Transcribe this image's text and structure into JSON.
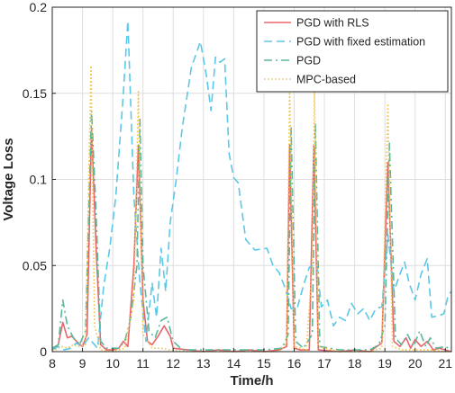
{
  "chart_data": {
    "type": "line",
    "xlabel": "Time/h",
    "ylabel": "Voltage Loss",
    "xlim": [
      8,
      21.2
    ],
    "ylim": [
      0,
      0.2
    ],
    "xticks": [
      "8",
      "9",
      "10",
      "11",
      "12",
      "13",
      "14",
      "15",
      "16",
      "17",
      "18",
      "19",
      "20",
      "21"
    ],
    "yticks": [
      "0",
      "0.05",
      "0.1",
      "0.15",
      "0.2"
    ],
    "grid": true,
    "legend_position": "top-right",
    "series": [
      {
        "name": "PGD with RLS",
        "color": "#e8666b",
        "style": "solid",
        "points": [
          [
            8.0,
            0.001
          ],
          [
            8.2,
            0.004
          ],
          [
            8.35,
            0.017
          ],
          [
            8.5,
            0.008
          ],
          [
            8.65,
            0.009
          ],
          [
            8.8,
            0.006
          ],
          [
            9.0,
            0.003
          ],
          [
            9.15,
            0.01
          ],
          [
            9.3,
            0.13
          ],
          [
            9.45,
            0.06
          ],
          [
            9.6,
            0.004
          ],
          [
            9.8,
            0.001
          ],
          [
            10.0,
            0.001
          ],
          [
            10.2,
            0.002
          ],
          [
            10.35,
            0.006
          ],
          [
            10.5,
            0.003
          ],
          [
            10.7,
            0.05
          ],
          [
            10.85,
            0.12
          ],
          [
            11.0,
            0.03
          ],
          [
            11.15,
            0.006
          ],
          [
            11.3,
            0.004
          ],
          [
            11.5,
            0.009
          ],
          [
            11.7,
            0.015
          ],
          [
            11.9,
            0.009
          ],
          [
            12.0,
            0.002
          ],
          [
            12.5,
            0.001
          ],
          [
            13.0,
            0.0
          ],
          [
            13.5,
            0.001
          ],
          [
            14.0,
            0.0
          ],
          [
            14.5,
            0.001
          ],
          [
            15.0,
            0.0
          ],
          [
            15.5,
            0.001
          ],
          [
            15.75,
            0.003
          ],
          [
            15.85,
            0.12
          ],
          [
            16.0,
            0.002
          ],
          [
            16.2,
            0.001
          ],
          [
            16.5,
            0.001
          ],
          [
            16.65,
            0.12
          ],
          [
            16.8,
            0.001
          ],
          [
            17.5,
            0.0
          ],
          [
            18.0,
            0.001
          ],
          [
            18.5,
            0.0
          ],
          [
            18.9,
            0.005
          ],
          [
            19.1,
            0.11
          ],
          [
            19.3,
            0.006
          ],
          [
            19.5,
            0.003
          ],
          [
            19.7,
            0.008
          ],
          [
            19.85,
            0.002
          ],
          [
            20.0,
            0.007
          ],
          [
            20.2,
            0.003
          ],
          [
            20.4,
            0.006
          ],
          [
            20.6,
            0.001
          ],
          [
            20.8,
            0.002
          ],
          [
            21.0,
            0.001
          ],
          [
            21.2,
            0.0
          ]
        ]
      },
      {
        "name": "PGD with fixed estimation",
        "color": "#5bc8e8",
        "style": "dashed",
        "points": [
          [
            8.0,
            0.001
          ],
          [
            8.2,
            0.003
          ],
          [
            8.4,
            0.001
          ],
          [
            8.6,
            0.002
          ],
          [
            8.8,
            0.005
          ],
          [
            9.0,
            0.003
          ],
          [
            9.2,
            0.008
          ],
          [
            9.35,
            0.005
          ],
          [
            9.5,
            0.002
          ],
          [
            9.7,
            0.038
          ],
          [
            9.9,
            0.06
          ],
          [
            10.1,
            0.09
          ],
          [
            10.35,
            0.15
          ],
          [
            10.5,
            0.192
          ],
          [
            10.7,
            0.09
          ],
          [
            10.9,
            0.04
          ],
          [
            11.1,
            0.006
          ],
          [
            11.3,
            0.04
          ],
          [
            11.45,
            0.02
          ],
          [
            11.6,
            0.06
          ],
          [
            11.75,
            0.035
          ],
          [
            11.9,
            0.075
          ],
          [
            12.1,
            0.1
          ],
          [
            12.3,
            0.13
          ],
          [
            12.6,
            0.165
          ],
          [
            12.9,
            0.18
          ],
          [
            13.1,
            0.16
          ],
          [
            13.25,
            0.14
          ],
          [
            13.4,
            0.171
          ],
          [
            13.55,
            0.168
          ],
          [
            13.7,
            0.17
          ],
          [
            13.85,
            0.115
          ],
          [
            14.0,
            0.101
          ],
          [
            14.15,
            0.098
          ],
          [
            14.4,
            0.065
          ],
          [
            14.7,
            0.059
          ],
          [
            15.1,
            0.06
          ],
          [
            15.3,
            0.05
          ],
          [
            15.5,
            0.046
          ],
          [
            15.7,
            0.037
          ],
          [
            15.9,
            0.025
          ],
          [
            16.1,
            0.025
          ],
          [
            16.3,
            0.038
          ],
          [
            16.5,
            0.049
          ],
          [
            16.75,
            0.051
          ],
          [
            16.9,
            0.026
          ],
          [
            17.1,
            0.03
          ],
          [
            17.3,
            0.015
          ],
          [
            17.5,
            0.02
          ],
          [
            17.7,
            0.018
          ],
          [
            17.9,
            0.028
          ],
          [
            18.1,
            0.022
          ],
          [
            18.3,
            0.025
          ],
          [
            18.5,
            0.018
          ],
          [
            18.7,
            0.025
          ],
          [
            18.9,
            0.026
          ],
          [
            19.1,
            0.068
          ],
          [
            19.3,
            0.035
          ],
          [
            19.5,
            0.045
          ],
          [
            19.65,
            0.052
          ],
          [
            19.8,
            0.04
          ],
          [
            20.0,
            0.03
          ],
          [
            20.2,
            0.045
          ],
          [
            20.4,
            0.054
          ],
          [
            20.55,
            0.02
          ],
          [
            20.8,
            0.021
          ],
          [
            20.95,
            0.022
          ],
          [
            21.1,
            0.033
          ],
          [
            21.2,
            0.035
          ]
        ]
      },
      {
        "name": "PGD",
        "color": "#5ab89a",
        "style": "dashdot",
        "points": [
          [
            8.0,
            0.002
          ],
          [
            8.2,
            0.004
          ],
          [
            8.35,
            0.03
          ],
          [
            8.5,
            0.015
          ],
          [
            8.7,
            0.008
          ],
          [
            8.9,
            0.004
          ],
          [
            9.1,
            0.012
          ],
          [
            9.3,
            0.14
          ],
          [
            9.45,
            0.08
          ],
          [
            9.6,
            0.006
          ],
          [
            9.8,
            0.002
          ],
          [
            10.0,
            0.002
          ],
          [
            10.2,
            0.002
          ],
          [
            10.4,
            0.006
          ],
          [
            10.6,
            0.02
          ],
          [
            10.8,
            0.05
          ],
          [
            10.9,
            0.135
          ],
          [
            11.0,
            0.05
          ],
          [
            11.2,
            0.012
          ],
          [
            11.4,
            0.008
          ],
          [
            11.6,
            0.018
          ],
          [
            11.8,
            0.02
          ],
          [
            12.0,
            0.006
          ],
          [
            12.3,
            0.001
          ],
          [
            13.0,
            0.001
          ],
          [
            14.0,
            0.001
          ],
          [
            15.0,
            0.001
          ],
          [
            15.6,
            0.002
          ],
          [
            15.8,
            0.01
          ],
          [
            15.9,
            0.13
          ],
          [
            16.05,
            0.006
          ],
          [
            16.3,
            0.002
          ],
          [
            16.6,
            0.01
          ],
          [
            16.7,
            0.133
          ],
          [
            16.85,
            0.003
          ],
          [
            17.5,
            0.001
          ],
          [
            18.0,
            0.001
          ],
          [
            18.5,
            0.001
          ],
          [
            18.8,
            0.004
          ],
          [
            19.0,
            0.015
          ],
          [
            19.15,
            0.121
          ],
          [
            19.35,
            0.008
          ],
          [
            19.55,
            0.004
          ],
          [
            19.75,
            0.01
          ],
          [
            19.95,
            0.003
          ],
          [
            20.15,
            0.012
          ],
          [
            20.35,
            0.003
          ],
          [
            20.5,
            0.008
          ],
          [
            20.7,
            0.002
          ],
          [
            21.0,
            0.003
          ],
          [
            21.2,
            0.001
          ]
        ]
      },
      {
        "name": "MPC-based",
        "color": "#f5c242",
        "style": "dotted",
        "points": [
          [
            8.0,
            0.0
          ],
          [
            8.3,
            0.003
          ],
          [
            8.5,
            0.002
          ],
          [
            8.7,
            0.004
          ],
          [
            8.9,
            0.003
          ],
          [
            9.1,
            0.004
          ],
          [
            9.28,
            0.166
          ],
          [
            9.4,
            0.015
          ],
          [
            9.6,
            0.001
          ],
          [
            10.0,
            0.0
          ],
          [
            10.4,
            0.002
          ],
          [
            10.7,
            0.03
          ],
          [
            10.85,
            0.151
          ],
          [
            11.0,
            0.01
          ],
          [
            11.3,
            0.002
          ],
          [
            11.6,
            0.002
          ],
          [
            11.9,
            0.001
          ],
          [
            12.5,
            0.0
          ],
          [
            13.5,
            0.0
          ],
          [
            14.5,
            0.0
          ],
          [
            15.5,
            0.0
          ],
          [
            15.75,
            0.005
          ],
          [
            15.85,
            0.153
          ],
          [
            16.0,
            0.003
          ],
          [
            16.4,
            0.001
          ],
          [
            16.6,
            0.05
          ],
          [
            16.67,
            0.153
          ],
          [
            16.8,
            0.003
          ],
          [
            17.5,
            0.0
          ],
          [
            18.5,
            0.0
          ],
          [
            18.9,
            0.002
          ],
          [
            19.1,
            0.144
          ],
          [
            19.25,
            0.003
          ],
          [
            19.6,
            0.001
          ],
          [
            20.0,
            0.001
          ],
          [
            20.5,
            0.001
          ],
          [
            21.0,
            0.0
          ],
          [
            21.2,
            0.0
          ]
        ]
      }
    ]
  }
}
